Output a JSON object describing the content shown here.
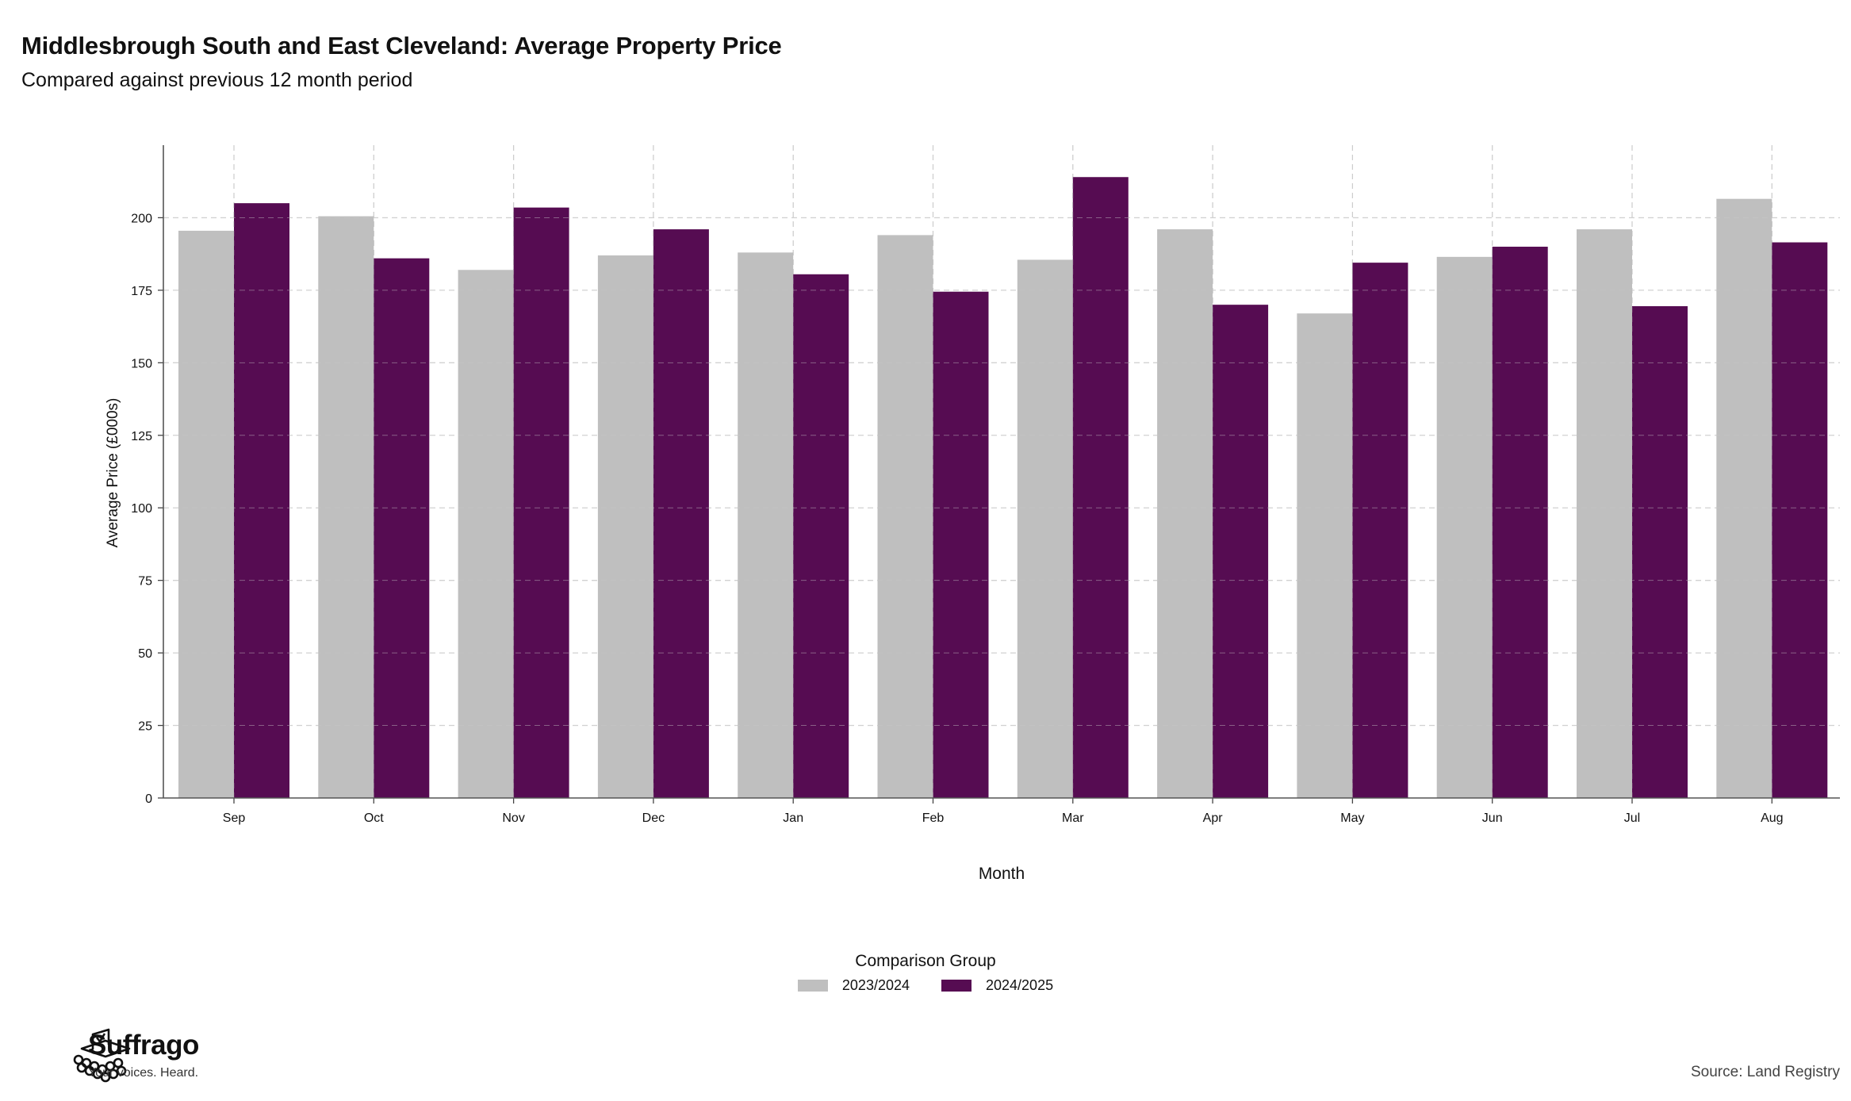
{
  "header": {
    "title": "Middlesbrough South and East Cleveland: Average Property Price",
    "subtitle": "Compared against previous 12 month period"
  },
  "chart_data": {
    "type": "bar",
    "categories": [
      "Sep",
      "Oct",
      "Nov",
      "Dec",
      "Jan",
      "Feb",
      "Mar",
      "Apr",
      "May",
      "Jun",
      "Jul",
      "Aug"
    ],
    "series": [
      {
        "name": "2023/2024",
        "color": "#bfbfbf",
        "values": [
          195.5,
          200.5,
          182,
          187,
          188,
          194,
          185.5,
          196,
          167,
          186.5,
          196,
          206.5
        ]
      },
      {
        "name": "2024/2025",
        "color": "#560c52",
        "values": [
          205,
          186,
          203.5,
          196,
          180.5,
          174.5,
          214,
          170,
          184.5,
          190,
          169.5,
          191.5
        ]
      }
    ],
    "xlabel": "Month",
    "ylabel": "Average Price (£000s)",
    "ylim": [
      0,
      225
    ],
    "yticks": [
      0,
      25,
      50,
      75,
      100,
      125,
      150,
      175,
      200
    ],
    "grid": true,
    "legend_title": "Comparison Group",
    "legend_position": "bottom"
  },
  "footer": {
    "brand": "Suffrago",
    "tagline": "Your voices. Heard.",
    "source": "Source: Land Registry"
  }
}
